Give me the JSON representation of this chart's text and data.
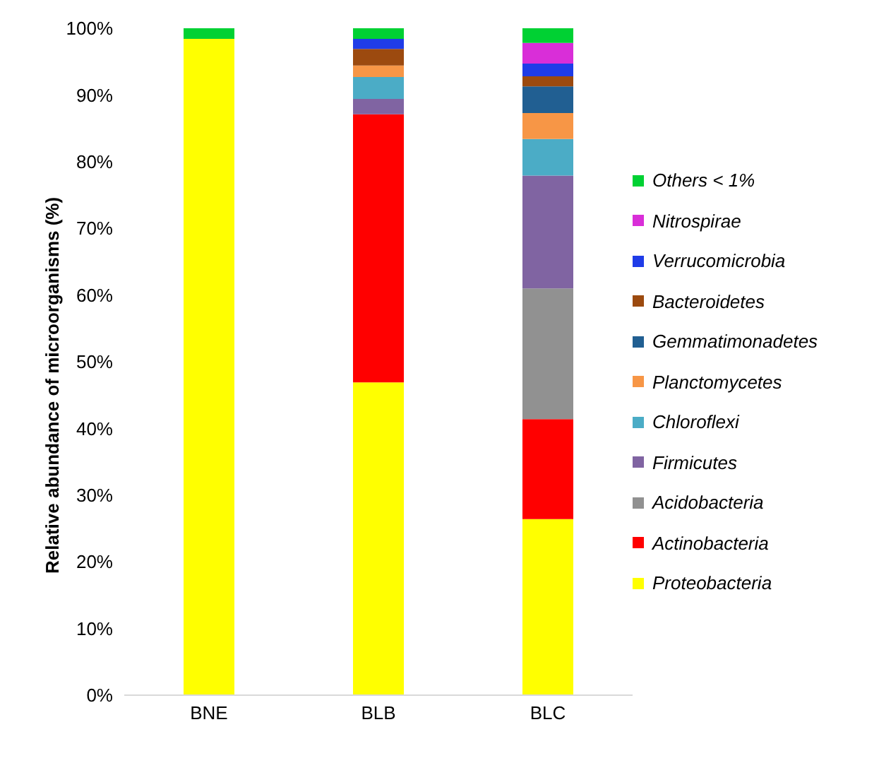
{
  "chart_data": {
    "type": "bar",
    "stacked": true,
    "ylabel": "Relative abundance of microorganisms  (%)",
    "categories": [
      "BNE",
      "BLB",
      "BLC"
    ],
    "series": [
      {
        "name": "Proteobacteria",
        "color": "#ffff00",
        "values": [
          98.4,
          46.9,
          26.4
        ]
      },
      {
        "name": "Actinobacteria",
        "color": "#ff0000",
        "values": [
          0,
          40.2,
          15.0
        ]
      },
      {
        "name": "Acidobacteria",
        "color": "#919191",
        "values": [
          0,
          0,
          19.6
        ]
      },
      {
        "name": "Firmicutes",
        "color": "#8064a2",
        "values": [
          0,
          2.3,
          16.9
        ]
      },
      {
        "name": "Chloroflexi",
        "color": "#4bacc6",
        "values": [
          0,
          3.3,
          5.5
        ]
      },
      {
        "name": "Planctomycetes",
        "color": "#f79646",
        "values": [
          0,
          1.7,
          3.9
        ]
      },
      {
        "name": "Gemmatimonadetes",
        "color": "#215f92",
        "values": [
          0,
          0,
          4.0
        ]
      },
      {
        "name": "Bacteroidetes",
        "color": "#9c4a0f",
        "values": [
          0,
          2.5,
          1.5
        ]
      },
      {
        "name": "Verrucomicrobia",
        "color": "#1f3ce8",
        "values": [
          0,
          1.5,
          1.9
        ]
      },
      {
        "name": "Nitrospirae",
        "color": "#d92ed8",
        "values": [
          0,
          0,
          3.1
        ]
      },
      {
        "name": "Others < 1%",
        "color": "#00d133",
        "values": [
          1.6,
          1.6,
          2.2
        ]
      }
    ],
    "ylim": [
      0,
      100
    ],
    "yticks": [
      {
        "value": 0,
        "label": "0%"
      },
      {
        "value": 10,
        "label": "10%"
      },
      {
        "value": 20,
        "label": "20%"
      },
      {
        "value": 30,
        "label": "30%"
      },
      {
        "value": 40,
        "label": "40%"
      },
      {
        "value": 50,
        "label": "50%"
      },
      {
        "value": 60,
        "label": "60%"
      },
      {
        "value": 70,
        "label": "70%"
      },
      {
        "value": 80,
        "label": "80%"
      },
      {
        "value": 90,
        "label": "90%"
      },
      {
        "value": 100,
        "label": "100%"
      }
    ],
    "grid": false,
    "legend": "right"
  }
}
